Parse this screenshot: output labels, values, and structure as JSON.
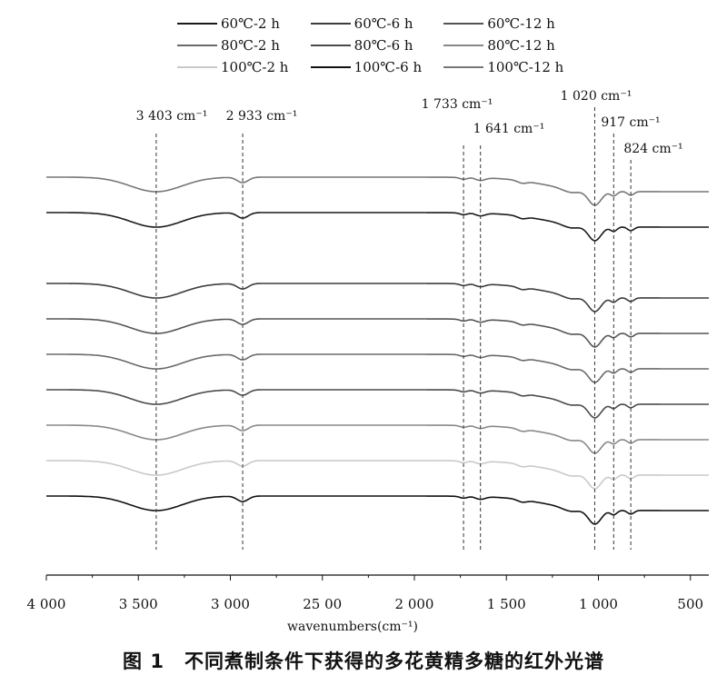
{
  "caption": "图 1　不同煮制条件下获得的多花黄精多糖的红外光谱",
  "chart_data": {
    "type": "line",
    "xlabel": "wavenumbers(cm⁻¹)",
    "xlim": [
      4000,
      400
    ],
    "x_ticks": [
      4000,
      3500,
      3000,
      2500,
      2000,
      1500,
      1000,
      500
    ],
    "x_tick_labels": [
      "4 000",
      "3 500",
      "3 000",
      "25 00",
      "2 000",
      "1 500",
      "1 000",
      "500"
    ],
    "grid": false,
    "legend_position": "top",
    "series": [
      {
        "name": "60℃-2 h",
        "color": "#1a1a1a",
        "offset": 8
      },
      {
        "name": "60℃-6 h",
        "color": "#3c3c3c",
        "offset": 6
      },
      {
        "name": "60℃-12 h",
        "color": "#555555",
        "offset": 5
      },
      {
        "name": "80℃-2 h",
        "color": "#6a6a6a",
        "offset": 4
      },
      {
        "name": "80℃-6 h",
        "color": "#4a4a4a",
        "offset": 3
      },
      {
        "name": "80℃-12 h",
        "color": "#888888",
        "offset": 2
      },
      {
        "name": "100℃-2 h",
        "color": "#c9c9c9",
        "offset": 1
      },
      {
        "name": "100℃-6 h",
        "color": "#111111",
        "offset": 0
      },
      {
        "name": "100℃-12 h",
        "color": "#777777",
        "offset": 9
      }
    ],
    "annotations": [
      {
        "wavenumber": 3403,
        "text": "3 403 cm⁻¹"
      },
      {
        "wavenumber": 2933,
        "text": "2 933 cm⁻¹"
      },
      {
        "wavenumber": 1733,
        "text": "1 733 cm⁻¹"
      },
      {
        "wavenumber": 1641,
        "text": "1 641 cm⁻¹"
      },
      {
        "wavenumber": 1020,
        "text": "1 020 cm⁻¹"
      },
      {
        "wavenumber": 917,
        "text": "917 cm⁻¹"
      },
      {
        "wavenumber": 824,
        "text": "824 cm⁻¹"
      }
    ]
  }
}
